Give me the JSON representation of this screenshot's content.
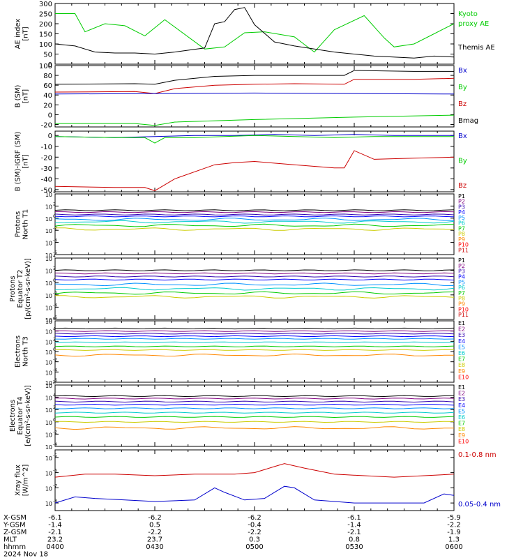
{
  "figure": {
    "date_label": "2024 Nov 18",
    "time_ticks": [
      "0400",
      "0430",
      "0500",
      "0530",
      "0600"
    ],
    "ephemeris": [
      {
        "label": "X-GSM",
        "values": [
          "-6.1",
          "-6.2",
          "-6.2",
          "-6.1",
          "-5.9"
        ]
      },
      {
        "label": "Y-GSM",
        "values": [
          "-1.4",
          "0.5",
          "-0.4",
          "-1.4",
          "-2.2"
        ]
      },
      {
        "label": "Z-GSM",
        "values": [
          "-2.1",
          "-2.2",
          "-2.2",
          "-2.1",
          "-1.9"
        ]
      },
      {
        "label": "MLT",
        "values": [
          "23.2",
          "23.7",
          "0.3",
          "0.8",
          "1.3"
        ]
      },
      {
        "label": "hhmm",
        "values": [
          "0400",
          "0430",
          "0500",
          "0530",
          "0600"
        ]
      }
    ]
  },
  "colors": {
    "black": "#000000",
    "green": "#00cc00",
    "red": "#cc0000",
    "blue": "#0000cc",
    "p_palette": [
      "#000000",
      "#800080",
      "#3000b0",
      "#0000ff",
      "#0090ff",
      "#00cccc",
      "#00cc00",
      "#cccc00",
      "#ff8800",
      "#ff0000",
      "#cc0000"
    ],
    "e_palette": [
      "#000000",
      "#800080",
      "#3000b0",
      "#0000ff",
      "#0090ff",
      "#00cccc",
      "#00cc00",
      "#cccc00",
      "#ff8800",
      "#ff0000",
      "#cc0000"
    ]
  },
  "chart_data": [
    {
      "type": "line",
      "id": "ae",
      "ylabel": [
        "AE index",
        "[nT]"
      ],
      "ylim": [
        0,
        300
      ],
      "yscale": "linear",
      "yticks": [
        "0",
        "50",
        "100",
        "150",
        "200",
        "250",
        "300"
      ],
      "x_hours": [
        0,
        2
      ],
      "legend": [
        {
          "text": "Kyoto",
          "color": "#00cc00"
        },
        {
          "text": "proxy AE",
          "color": "#00cc00"
        },
        {
          "text": "Themis AE",
          "color": "#000000"
        }
      ],
      "series": [
        {
          "name": "Kyoto proxy AE",
          "color": "#00cc00",
          "x": [
            0,
            0.1,
            0.15,
            0.25,
            0.35,
            0.45,
            0.55,
            0.75,
            0.85,
            0.95,
            1.05,
            1.2,
            1.3,
            1.4,
            1.55,
            1.65,
            1.7,
            1.8,
            1.9,
            2.0
          ],
          "y": [
            250,
            250,
            160,
            200,
            190,
            140,
            220,
            75,
            85,
            155,
            160,
            135,
            60,
            170,
            240,
            130,
            85,
            100,
            150,
            200
          ]
        },
        {
          "name": "Themis AE",
          "color": "#000000",
          "x": [
            0,
            0.1,
            0.2,
            0.3,
            0.4,
            0.5,
            0.6,
            0.75,
            0.8,
            0.85,
            0.9,
            0.95,
            1.0,
            1.1,
            1.2,
            1.4,
            1.6,
            1.8,
            1.9,
            2.0
          ],
          "y": [
            100,
            90,
            60,
            55,
            55,
            50,
            60,
            80,
            200,
            210,
            270,
            280,
            195,
            110,
            90,
            60,
            40,
            30,
            40,
            35
          ]
        }
      ]
    },
    {
      "type": "line",
      "id": "bsm",
      "ylabel": [
        "B (SM)",
        "[nT]"
      ],
      "ylim": [
        -25,
        100
      ],
      "yscale": "linear",
      "yticks": [
        "-20",
        "0",
        "20",
        "40",
        "60",
        "80",
        "100"
      ],
      "x_hours": [
        0,
        2
      ],
      "legend": [
        {
          "text": "Bx",
          "color": "#0000cc"
        },
        {
          "text": "By",
          "color": "#00cc00"
        },
        {
          "text": "Bz",
          "color": "#cc0000"
        },
        {
          "text": "Bmag",
          "color": "#000000"
        }
      ],
      "series": [
        {
          "name": "Bmag",
          "color": "#000000",
          "x": [
            0,
            0.4,
            0.5,
            0.6,
            0.8,
            1.0,
            1.2,
            1.45,
            1.5,
            1.8,
            2.0
          ],
          "y": [
            62,
            63,
            62,
            70,
            78,
            80,
            80,
            80,
            90,
            88,
            88
          ]
        },
        {
          "name": "Bz",
          "color": "#cc0000",
          "x": [
            0,
            0.4,
            0.5,
            0.6,
            0.8,
            1.0,
            1.2,
            1.45,
            1.5,
            1.8,
            2.0
          ],
          "y": [
            46,
            47,
            43,
            53,
            60,
            62,
            63,
            62,
            72,
            72,
            74
          ]
        },
        {
          "name": "Bx",
          "color": "#0000cc",
          "x": [
            0,
            0.5,
            1.0,
            1.5,
            2.0
          ],
          "y": [
            42,
            43,
            44,
            43,
            42
          ]
        },
        {
          "name": "By",
          "color": "#00cc00",
          "x": [
            0,
            0.4,
            0.5,
            0.6,
            1.0,
            1.5,
            2.0
          ],
          "y": [
            -18,
            -18,
            -22,
            -15,
            -10,
            -5,
            -1
          ]
        }
      ]
    },
    {
      "type": "line",
      "id": "dbsm",
      "ylabel": [
        "B (SM)-IGRF (SM)",
        "[nT]"
      ],
      "ylim": [
        -52,
        4
      ],
      "yscale": "linear",
      "yticks": [
        "-50",
        "-40",
        "-30",
        "-20",
        "-10",
        "0"
      ],
      "x_hours": [
        0,
        2
      ],
      "legend": [
        {
          "text": "Bx",
          "color": "#0000cc"
        },
        {
          "text": "By",
          "color": "#00cc00"
        },
        {
          "text": "Bz",
          "color": "#cc0000"
        }
      ],
      "series": [
        {
          "name": "Bx",
          "color": "#0000cc",
          "x": [
            0,
            0.3,
            0.5,
            0.7,
            0.9,
            1.1,
            1.3,
            1.5,
            1.7,
            2.0
          ],
          "y": [
            -1,
            -2,
            -1,
            0,
            0,
            1,
            0,
            1,
            0,
            0
          ]
        },
        {
          "name": "By",
          "color": "#00cc00",
          "x": [
            0,
            0.3,
            0.45,
            0.5,
            0.55,
            0.7,
            1.0,
            1.4,
            1.6,
            2.0
          ],
          "y": [
            -1,
            -2,
            -2,
            -7,
            -2,
            -2,
            0,
            -2,
            -1,
            -1
          ]
        },
        {
          "name": "Bz",
          "color": "#cc0000",
          "x": [
            0,
            0.3,
            0.45,
            0.5,
            0.6,
            0.8,
            0.9,
            1.0,
            1.2,
            1.4,
            1.45,
            1.5,
            1.6,
            1.8,
            2.0
          ],
          "y": [
            -47,
            -48,
            -48,
            -51,
            -40,
            -27,
            -25,
            -24,
            -27,
            -30,
            -30,
            -14,
            -22,
            -21,
            -20
          ]
        }
      ]
    },
    {
      "type": "line",
      "id": "p1",
      "ylabel": [
        "Protons",
        "North T1"
      ],
      "ylim": [
        -6,
        4
      ],
      "yscale": "log10",
      "yticks": [
        4,
        2,
        0,
        -2,
        -4,
        -6
      ],
      "x_hours": [
        0,
        2
      ],
      "legend_codes": [
        "P1",
        "P2",
        "P3",
        "P4",
        "P5",
        "P6",
        "P7",
        "P8",
        "P9",
        "P10",
        "P11"
      ],
      "channel_levels": [
        1.3,
        1.0,
        0.6,
        0.3,
        -0.2,
        -0.6,
        -1.2,
        -1.8
      ]
    },
    {
      "type": "line",
      "id": "p2",
      "ylabel": [
        "Protons",
        "Equator T2",
        "[p/(cm²-s-sr-keV)]"
      ],
      "ylim": [
        -6,
        4
      ],
      "yscale": "log10",
      "yticks": [
        4,
        2,
        0,
        -2,
        -4,
        -6
      ],
      "x_hours": [
        0,
        2
      ],
      "legend_codes": [
        "P1",
        "P2",
        "P3",
        "P4",
        "P5",
        "P6",
        "P7",
        "P8",
        "P9",
        "P10",
        "P11"
      ],
      "channel_levels": [
        2.0,
        1.5,
        1.0,
        0.5,
        -0.3,
        -1.0,
        -1.7,
        -2.3
      ]
    },
    {
      "type": "line",
      "id": "e3",
      "ylabel": [
        "Electrons",
        "North T3"
      ],
      "ylim": [
        -6,
        6
      ],
      "yscale": "log10",
      "yticks": [
        6,
        4,
        2,
        0,
        -2,
        -4,
        -6
      ],
      "x_hours": [
        0,
        2
      ],
      "legend_codes": [
        "E1",
        "E2",
        "E3",
        "E4",
        "E5",
        "E6",
        "E7",
        "E8",
        "E9",
        "E10"
      ],
      "channel_levels": [
        4.5,
        4.0,
        3.5,
        3.0,
        2.5,
        1.8,
        1.0,
        0.3,
        -0.7
      ]
    },
    {
      "type": "line",
      "id": "e4",
      "ylabel": [
        "Electrons",
        "Equator T4",
        "[e/(cm²-s-sr-keV)]"
      ],
      "ylim": [
        -4,
        6
      ],
      "yscale": "log10",
      "yticks": [
        6,
        4,
        2,
        0,
        -2,
        -4
      ],
      "x_hours": [
        0,
        2
      ],
      "legend_codes": [
        "E1",
        "E2",
        "E3",
        "E4",
        "E5",
        "E6",
        "E7",
        "E8",
        "E9",
        "E10"
      ],
      "channel_levels": [
        4.2,
        3.8,
        3.3,
        2.8,
        2.2,
        1.5,
        0.8,
        0.0,
        -1.0
      ]
    },
    {
      "type": "line",
      "id": "xray",
      "ylabel": [
        "Xray flux",
        "[W/m^2]"
      ],
      "ylim": [
        -8.5,
        -4.5
      ],
      "yscale": "log10",
      "yticks": [
        -5,
        -6,
        -7,
        -8
      ],
      "x_hours": [
        0,
        2
      ],
      "legend": [
        {
          "text": "0.1-0.8 nm",
          "color": "#cc0000"
        },
        {
          "text": "0.05-0.4 nm",
          "color": "#0000cc"
        }
      ],
      "series": [
        {
          "name": "0.1-0.8 nm",
          "color": "#cc0000",
          "x": [
            0,
            0.15,
            0.3,
            0.5,
            0.7,
            0.9,
            1.0,
            1.1,
            1.15,
            1.25,
            1.4,
            1.55,
            1.7,
            1.85,
            2.0
          ],
          "y": [
            -6.3,
            -6.1,
            -6.1,
            -6.2,
            -6.1,
            -6.1,
            -6.0,
            -5.6,
            -5.4,
            -5.7,
            -6.1,
            -6.2,
            -6.3,
            -6.2,
            -6.1
          ]
        },
        {
          "name": "0.05-0.4 nm",
          "color": "#0000cc",
          "x": [
            0,
            0.1,
            0.2,
            0.35,
            0.5,
            0.7,
            0.8,
            0.85,
            0.95,
            1.05,
            1.15,
            1.2,
            1.3,
            1.5,
            1.7,
            1.85,
            1.95,
            2.0
          ],
          "y": [
            -8.0,
            -7.6,
            -7.7,
            -7.8,
            -7.9,
            -7.8,
            -7.0,
            -7.3,
            -7.8,
            -7.7,
            -6.9,
            -7.0,
            -7.8,
            -8.0,
            -8.0,
            -8.0,
            -7.4,
            -7.5
          ]
        }
      ]
    }
  ]
}
